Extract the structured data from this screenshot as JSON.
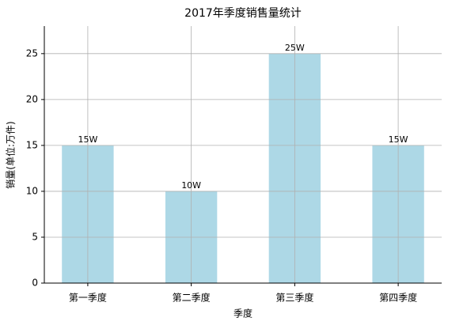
{
  "chart_data": {
    "type": "bar",
    "title": "2017年季度销售量统计",
    "x_label": "季度",
    "y_label": "销量(单位:万件)",
    "categories": [
      "第一季度",
      "第二季度",
      "第三季度",
      "第四季度"
    ],
    "values": [
      15,
      10,
      25,
      15
    ],
    "value_labels": [
      "15W",
      "10W",
      "25W",
      "15W"
    ],
    "color": "#add8e6",
    "ylim": [
      0,
      28
    ],
    "yticks": [
      0,
      5,
      10,
      15,
      20,
      25
    ],
    "grid": true
  }
}
